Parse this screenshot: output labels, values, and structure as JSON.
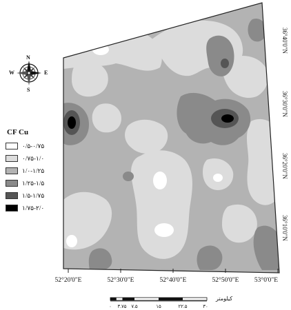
{
  "legend": {
    "title": "CF Cu",
    "classes": [
      {
        "label": "۰/۵-۰/۷۵",
        "color": "#ffffff"
      },
      {
        "label": "۰/۷۵-۱/۰",
        "color": "#dcdcdc"
      },
      {
        "label": "۱/۰-۱/۲۵",
        "color": "#b3b3b3"
      },
      {
        "label": "۱/۲۵-۱/۵",
        "color": "#8a8a8a"
      },
      {
        "label": "۱/۵-۱/۷۵",
        "color": "#555555"
      },
      {
        "label": "۱/۷۵-۲/۰",
        "color": "#000000"
      }
    ]
  },
  "axes": {
    "x_ticks": [
      "52°20'0\"E",
      "52°30'0\"E",
      "52°40'0\"E",
      "52°50'0\"E",
      "53°0'0\"E"
    ],
    "y_ticks": [
      "36°40'0\"N",
      "36°30'0\"N",
      "36°20'0\"N",
      "36°10'0\"N"
    ]
  },
  "north_arrow": {
    "icon": "compass-rose-icon",
    "n": "N",
    "s": "S",
    "e": "E",
    "w": "W"
  },
  "scale_bar": {
    "unit": "کیلومتر",
    "labels": [
      "۰",
      "۳.۷۵",
      "۷.۵",
      "۱۵",
      "۲۲.۵",
      "۳۰"
    ]
  }
}
